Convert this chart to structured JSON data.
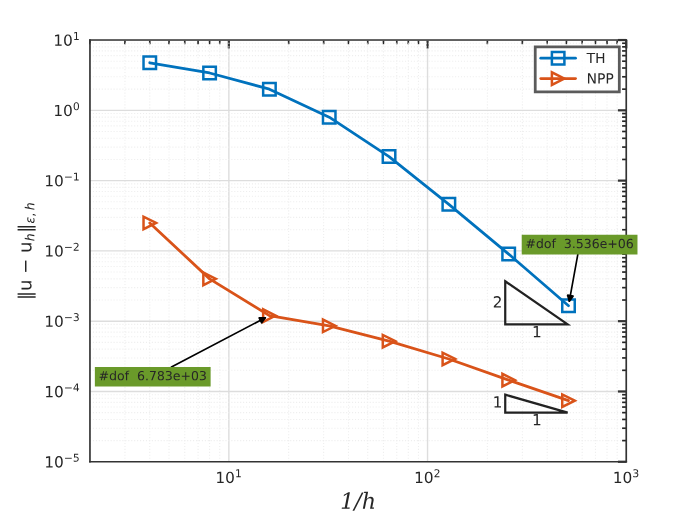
{
  "chart_data": {
    "type": "line",
    "xlabel": "1/h",
    "ylabel": "‖u − u$_{h}$‖$_{ε,h}$",
    "log": "xy",
    "xlim": [
      2,
      1000
    ],
    "xticks": [
      {
        "value": 10,
        "label": "10$^{1}$"
      },
      {
        "value": 100,
        "label": "10$^{2}$"
      },
      {
        "value": 1000,
        "label": "10$^{3}$"
      }
    ],
    "ylim": [
      1e-05,
      10
    ],
    "yticks": [
      {
        "value": 1e-05,
        "label": "10$^{−5}$"
      },
      {
        "value": 0.0001,
        "label": "10$^{−4}$"
      },
      {
        "value": 0.001,
        "label": "10$^{−3}$"
      },
      {
        "value": 0.01,
        "label": "10$^{−2}$"
      },
      {
        "value": 0.1,
        "label": "10$^{−1}$"
      },
      {
        "value": 1,
        "label": "10$^{0}$"
      },
      {
        "value": 10,
        "label": "10$^{1}$"
      }
    ],
    "x": [
      4,
      8,
      16,
      32,
      64,
      128,
      256,
      512
    ],
    "series": [
      {
        "name": "TH",
        "color": "#0072bd",
        "marker": "square",
        "values": [
          4.75,
          3.4,
          2.0,
          0.8,
          0.22,
          0.046,
          0.009,
          0.00166
        ]
      },
      {
        "name": "NPP",
        "color": "#d95319",
        "marker": "triangle",
        "values": [
          0.025,
          0.004,
          0.0012,
          0.00086,
          0.00052,
          0.00029,
          0.000145,
          7.4e-05
        ]
      }
    ],
    "annotations": [
      {
        "text": "#dof  3.536e+06",
        "x": 512,
        "y": 0.00166
      },
      {
        "text": "#dof  6.783e+03",
        "x": 16,
        "y": 0.0012
      },
      "2",
      "1",
      "1",
      "1"
    ],
    "grid": true,
    "legend": "top right"
  }
}
